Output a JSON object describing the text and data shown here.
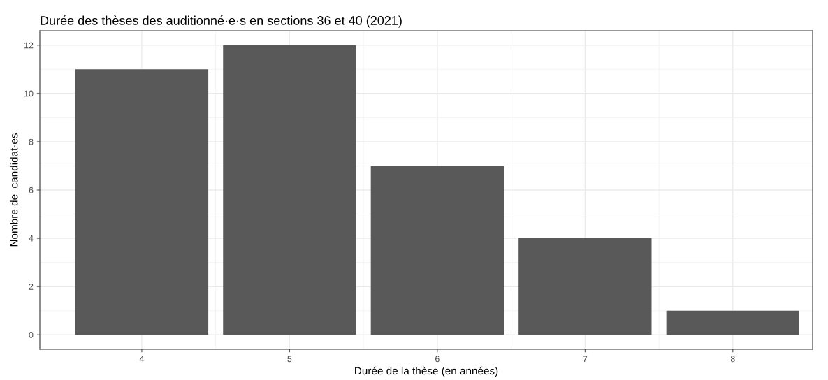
{
  "chart_data": {
    "type": "bar",
    "title": "Durée des thèses des auditionné·e·s en sections 36 et 40 (2021)",
    "xlabel": "Durée de la thèse (en années)",
    "ylabel": "Nombre de  candidat·es",
    "x": [
      4,
      5,
      6,
      7,
      8
    ],
    "values": [
      11,
      12,
      7,
      4,
      1
    ],
    "color": "#595959",
    "xlim": [
      3.31,
      8.54
    ],
    "xticks": [
      4,
      5,
      6,
      7,
      8
    ],
    "ylim": [
      -0.6,
      12.6
    ],
    "yticks": [
      0,
      2,
      4,
      6,
      8,
      10,
      12
    ],
    "grid": true
  }
}
